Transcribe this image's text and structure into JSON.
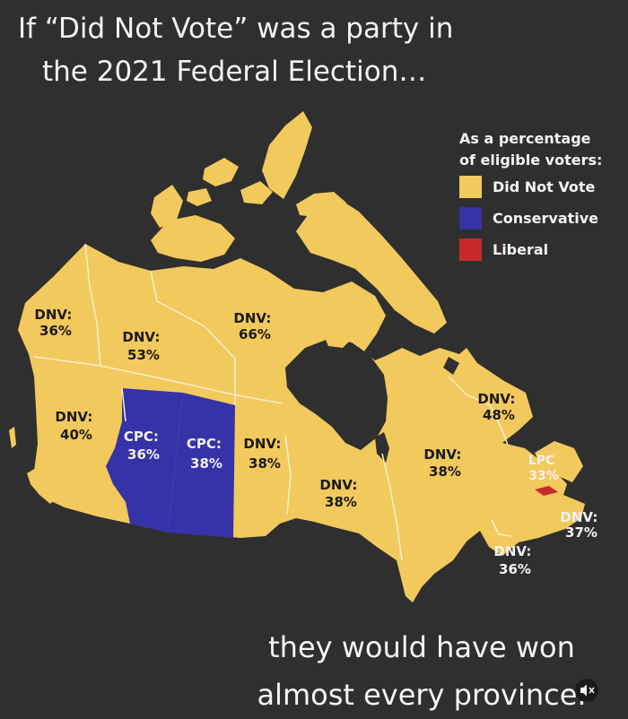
{
  "title": {
    "line1": "If “Did Not Vote” was a party in",
    "line2": "the 2021 Federal Election…"
  },
  "legend": {
    "heading_line1": "As a percentage",
    "heading_line2": "of eligible voters:",
    "items": [
      {
        "label": "Did Not Vote",
        "color": "#f2c95c"
      },
      {
        "label": "Conservative",
        "color": "#3632a8"
      },
      {
        "label": "Liberal",
        "color": "#c62a2a"
      }
    ]
  },
  "regions": [
    {
      "id": "yukon",
      "l1": "DNV:",
      "l2": "36%",
      "winner": "dnv"
    },
    {
      "id": "nwt",
      "l1": "DNV:",
      "l2": "53%",
      "winner": "dnv"
    },
    {
      "id": "nunavut",
      "l1": "DNV:",
      "l2": "66%",
      "winner": "dnv"
    },
    {
      "id": "bc",
      "l1": "DNV:",
      "l2": "40%",
      "winner": "dnv"
    },
    {
      "id": "alberta",
      "l1": "CPC:",
      "l2": "36%",
      "winner": "cpc"
    },
    {
      "id": "saskatchewan",
      "l1": "CPC:",
      "l2": "38%",
      "winner": "cpc"
    },
    {
      "id": "manitoba",
      "l1": "DNV:",
      "l2": "38%",
      "winner": "dnv"
    },
    {
      "id": "ontario",
      "l1": "DNV:",
      "l2": "38%",
      "winner": "dnv"
    },
    {
      "id": "quebec",
      "l1": "DNV:",
      "l2": "38%",
      "winner": "dnv"
    },
    {
      "id": "newfoundland",
      "l1": "DNV:",
      "l2": "48%",
      "winner": "dnv"
    },
    {
      "id": "pei",
      "l1": "LPC",
      "l2": "33%",
      "winner": "lpc"
    },
    {
      "id": "new-brunswick",
      "l1": "DNV:",
      "l2": "36%",
      "winner": "dnv"
    },
    {
      "id": "nova-scotia",
      "l1": "DNV:",
      "l2": "37%",
      "winner": "dnv"
    }
  ],
  "caption": {
    "line1": "they would have won",
    "line2": "almost every province."
  }
}
